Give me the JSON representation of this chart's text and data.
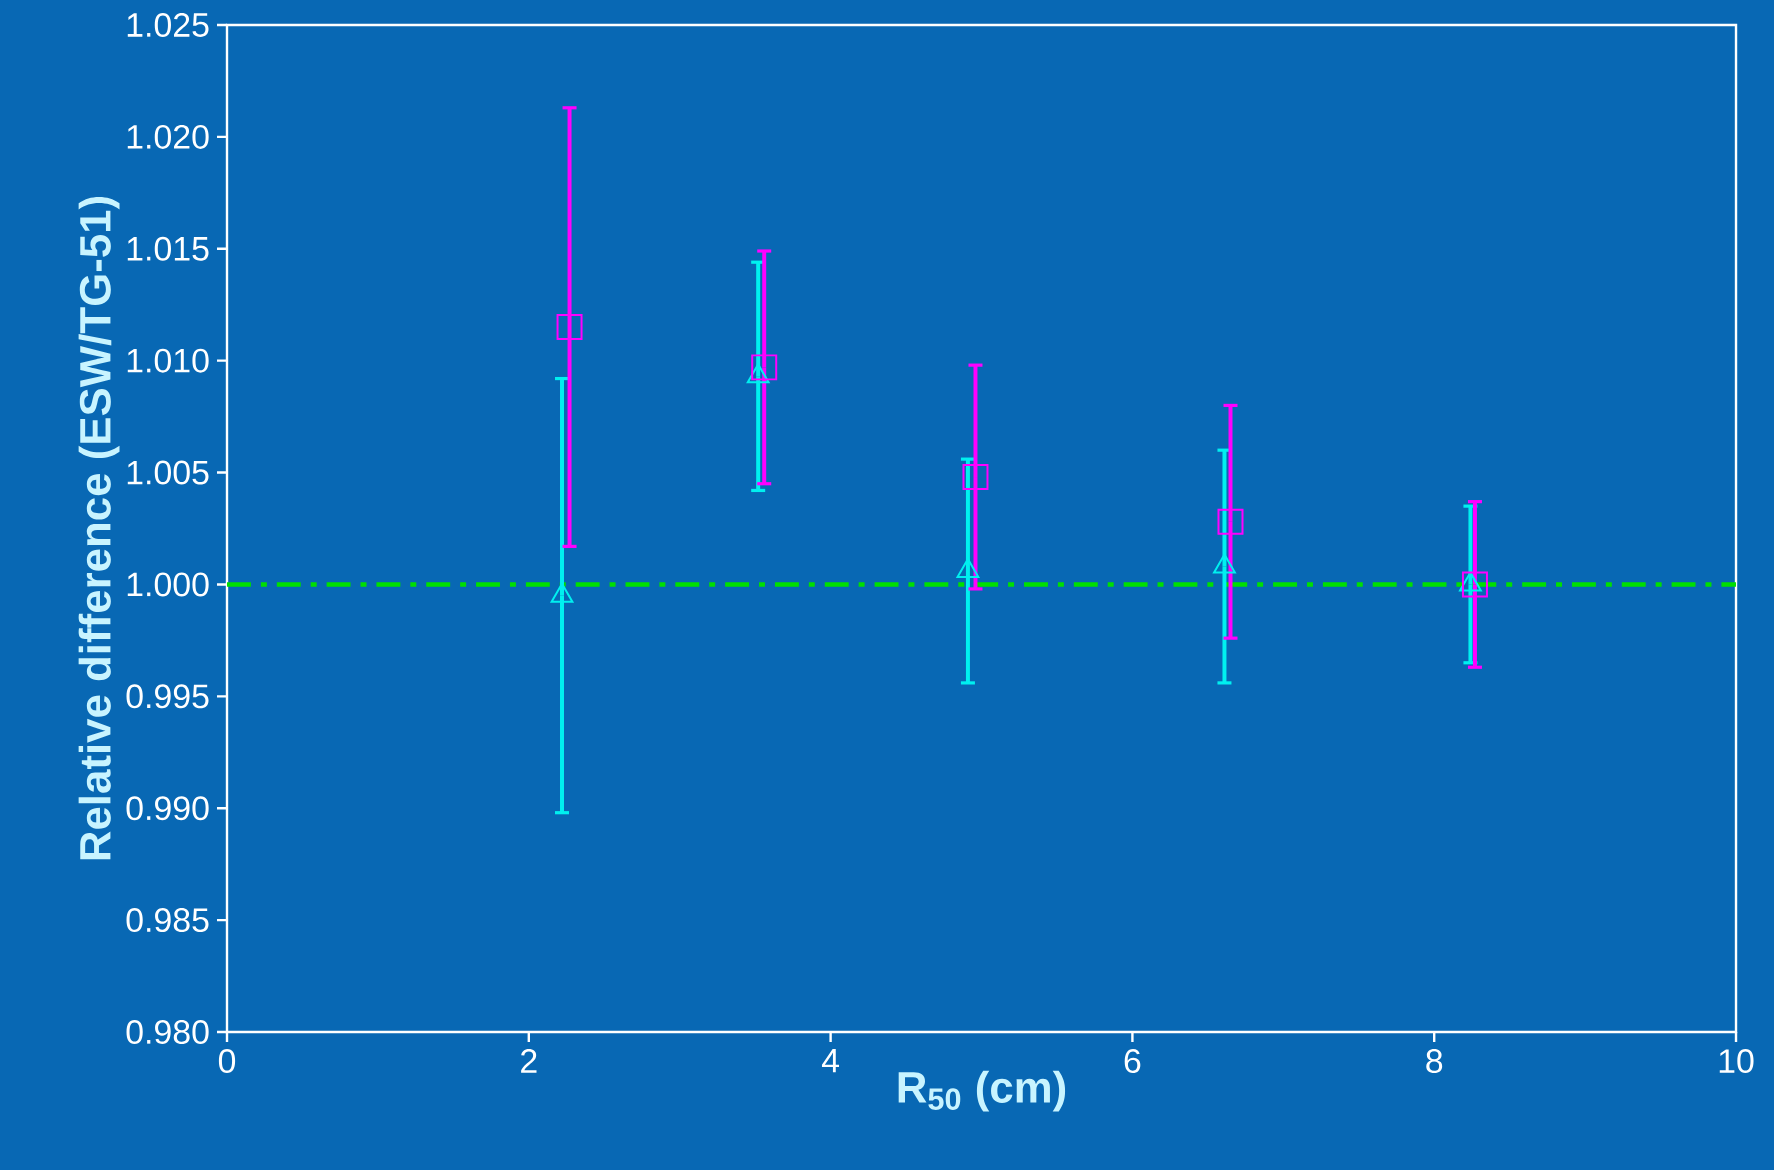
{
  "chart_data": {
    "type": "scatter",
    "xlabel": "R$_{50}$ (cm)",
    "ylabel": "Relative difference (ESW/TG-51)",
    "xlim": [
      0,
      10
    ],
    "xticks": [
      0,
      2,
      4,
      6,
      8,
      10
    ],
    "ylim": [
      0.98,
      1.025
    ],
    "yticks": [
      {
        "value": 0.98,
        "label": "0.980"
      },
      0.985,
      {
        "value": 0.99,
        "label": "0.990"
      },
      0.995,
      {
        "value": 1.0,
        "label": "1.000"
      },
      1.005,
      {
        "value": 1.01,
        "label": "1.010"
      },
      1.015,
      {
        "value": 1.02,
        "label": "1.020"
      },
      1.025
    ],
    "grid": false,
    "ref_lines": [
      {
        "axis": "y",
        "value": 1.0,
        "color": "#00e000",
        "line_style": "dashdot"
      }
    ],
    "series": [
      {
        "color": "#00f0f0",
        "marker": "triangle",
        "x": [
          2.22,
          3.52,
          4.91,
          6.61,
          8.24
        ],
        "values": [
          0.9995,
          1.0093,
          1.0006,
          1.0008,
          1.0
        ],
        "errors": [
          0.0097,
          0.0051,
          0.005,
          0.0052,
          0.0035
        ]
      },
      {
        "color": "#ff00ff",
        "marker": "square",
        "x": [
          2.27,
          3.56,
          4.96,
          6.65,
          8.27
        ],
        "values": [
          1.0115,
          1.0097,
          1.0048,
          1.0028,
          1.0
        ],
        "errors": [
          0.0098,
          0.0052,
          0.005,
          0.0052,
          0.0037
        ]
      }
    ]
  }
}
